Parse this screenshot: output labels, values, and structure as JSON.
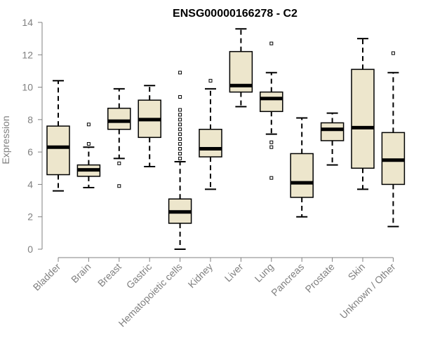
{
  "chart_data": {
    "type": "boxplot",
    "title": "ENSG00000166278 - C2",
    "xlabel": "",
    "ylabel": "Expression",
    "ylim": [
      0,
      14
    ],
    "yticks": [
      0,
      2,
      4,
      6,
      8,
      10,
      12,
      14
    ],
    "grid": false,
    "colors": {
      "box_fill": "#ede6cc",
      "median": "#000000",
      "axis": "#808080"
    },
    "categories": [
      "Bladder",
      "Brain",
      "Breast",
      "Gastric",
      "Hematopoietic cells",
      "Kidney",
      "Liver",
      "Lung",
      "Pancreas",
      "Prostate",
      "Skin",
      "Unknown / Other"
    ],
    "boxes": [
      {
        "name": "Bladder",
        "whisker_low": 3.6,
        "q1": 4.6,
        "median": 6.3,
        "q3": 7.6,
        "whisker_high": 10.4,
        "outliers": []
      },
      {
        "name": "Brain",
        "whisker_low": 3.8,
        "q1": 4.5,
        "median": 4.9,
        "q3": 5.2,
        "whisker_high": 6.3,
        "outliers": [
          6.5,
          7.7
        ]
      },
      {
        "name": "Breast",
        "whisker_low": 5.6,
        "q1": 7.4,
        "median": 7.9,
        "q3": 8.7,
        "whisker_high": 9.9,
        "outliers": [
          5.3,
          3.9
        ]
      },
      {
        "name": "Gastric",
        "whisker_low": 5.1,
        "q1": 6.9,
        "median": 8.0,
        "q3": 9.2,
        "whisker_high": 10.1,
        "outliers": []
      },
      {
        "name": "Hematopoietic cells",
        "whisker_low": 0.0,
        "q1": 1.6,
        "median": 2.3,
        "q3": 3.1,
        "whisker_high": 5.4,
        "outliers": [
          5.6,
          5.9,
          6.2,
          6.5,
          6.8,
          7.1,
          7.4,
          7.7,
          8.0,
          8.3,
          8.6,
          9.4,
          10.9
        ]
      },
      {
        "name": "Kidney",
        "whisker_low": 3.7,
        "q1": 5.7,
        "median": 6.2,
        "q3": 7.4,
        "whisker_high": 9.9,
        "outliers": [
          10.4
        ]
      },
      {
        "name": "Liver",
        "whisker_low": 8.8,
        "q1": 9.7,
        "median": 10.1,
        "q3": 12.2,
        "whisker_high": 13.6,
        "outliers": []
      },
      {
        "name": "Lung",
        "whisker_low": 7.1,
        "q1": 8.5,
        "median": 9.3,
        "q3": 9.7,
        "whisker_high": 10.9,
        "outliers": [
          12.7,
          6.6,
          6.3,
          4.4
        ]
      },
      {
        "name": "Pancreas",
        "whisker_low": 2.0,
        "q1": 3.2,
        "median": 4.1,
        "q3": 5.9,
        "whisker_high": 8.1,
        "outliers": []
      },
      {
        "name": "Prostate",
        "whisker_low": 5.2,
        "q1": 6.7,
        "median": 7.4,
        "q3": 7.8,
        "whisker_high": 8.4,
        "outliers": []
      },
      {
        "name": "Skin",
        "whisker_low": 3.7,
        "q1": 5.0,
        "median": 7.5,
        "q3": 11.1,
        "whisker_high": 13.0,
        "outliers": []
      },
      {
        "name": "Unknown / Other",
        "whisker_low": 1.4,
        "q1": 4.0,
        "median": 5.5,
        "q3": 7.2,
        "whisker_high": 10.9,
        "outliers": [
          12.1
        ]
      }
    ]
  }
}
